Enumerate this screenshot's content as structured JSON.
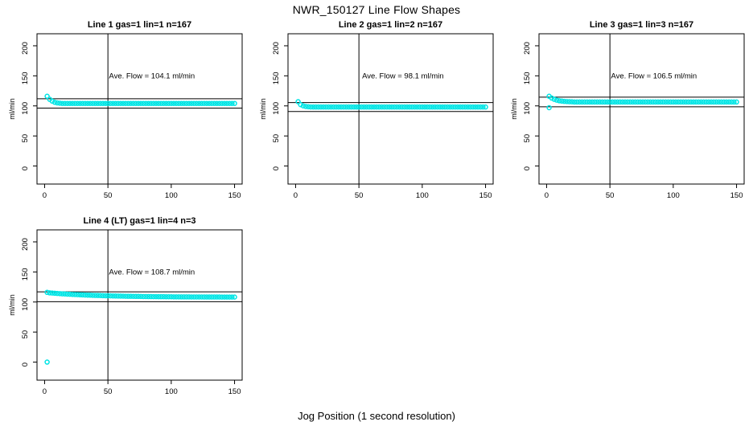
{
  "page": {
    "title": "NWR_150127  Line Flow Shapes",
    "xlabel": "Jog Position (1 second resolution)"
  },
  "colors": {
    "points": "#00E5E5",
    "lines": "#000000",
    "text": "#000000",
    "background": "#FFFFFF"
  },
  "chart_data": [
    {
      "type": "scatter",
      "title": "Line 1 gas=1 lin=1 n=167",
      "annotation": "Ave. Flow =  104.1  ml/min",
      "ave_flow_ml_min": 104.1,
      "ylabel": "ml/min",
      "xlim": [
        -6,
        156
      ],
      "ylim": [
        -30,
        220
      ],
      "xticks": [
        0,
        50,
        100,
        150
      ],
      "yticks": [
        0,
        50,
        100,
        150,
        200
      ],
      "vline_x": 50,
      "hlines_y": [
        111.9,
        96.3
      ],
      "x_start": 2,
      "x_step": 2,
      "y": [
        116,
        111,
        108,
        106,
        105,
        104.5,
        104.1,
        104.1,
        104.1,
        104.1,
        104.1,
        104.1,
        104.1,
        104.1,
        104.1,
        104.1,
        104.1,
        104.1,
        104.1,
        104.1,
        104.1,
        104.1,
        104.1,
        104.1,
        104.1,
        104.1,
        104.1,
        104.1,
        104.1,
        104.1,
        104.1,
        104.1,
        104.1,
        104.1,
        104.1,
        104.1,
        104.1,
        104.1,
        104.1,
        104.1,
        104.1,
        104.1,
        104.1,
        104.1,
        104.1,
        104.1,
        104.1,
        104.1,
        104.1,
        104.1,
        104.1,
        104.1,
        104.1,
        104.1,
        104.1,
        104.1,
        104.1,
        104.1,
        104.1,
        104.1,
        104.1,
        104.1,
        104.1,
        104.1,
        104.1,
        104.1,
        104.1,
        104.1,
        104.1,
        104.1,
        104.1,
        104.1,
        104.1,
        104.1,
        104.1
      ],
      "extra_points": []
    },
    {
      "type": "scatter",
      "title": "Line 2 gas=1 lin=2 n=167",
      "annotation": "Ave. Flow =  98.1  ml/min",
      "ave_flow_ml_min": 98.1,
      "ylabel": "ml/min",
      "xlim": [
        -6,
        156
      ],
      "ylim": [
        -30,
        220
      ],
      "xticks": [
        0,
        50,
        100,
        150
      ],
      "yticks": [
        0,
        50,
        100,
        150,
        200
      ],
      "vline_x": 50,
      "hlines_y": [
        105.5,
        90.7
      ],
      "x_start": 2,
      "x_step": 2,
      "y": [
        107,
        102,
        100,
        99,
        98.5,
        98.2,
        98.1,
        98.1,
        98.1,
        98.1,
        98.1,
        98.1,
        98.1,
        98.1,
        98.1,
        98.1,
        98.1,
        98.1,
        98.1,
        98.1,
        98.1,
        98.1,
        98.1,
        98.1,
        98.1,
        98.1,
        98.1,
        98.1,
        98.1,
        98.1,
        98.1,
        98.1,
        98.1,
        98.1,
        98.1,
        98.1,
        98.1,
        98.1,
        98.1,
        98.1,
        98.1,
        98.1,
        98.1,
        98.1,
        98.1,
        98.1,
        98.1,
        98.1,
        98.1,
        98.1,
        98.1,
        98.1,
        98.1,
        98.1,
        98.1,
        98.1,
        98.1,
        98.1,
        98.1,
        98.1,
        98.1,
        98.1,
        98.1,
        98.1,
        98.1,
        98.1,
        98.1,
        98.1,
        98.1,
        98.1,
        98.1,
        98.1,
        98.1,
        98.1,
        98.1
      ],
      "extra_points": []
    },
    {
      "type": "scatter",
      "title": "Line 3 gas=1 lin=3 n=167",
      "annotation": "Ave. Flow =  106.5  ml/min",
      "ave_flow_ml_min": 106.5,
      "ylabel": "ml/min",
      "xlim": [
        -6,
        156
      ],
      "ylim": [
        -30,
        220
      ],
      "xticks": [
        0,
        50,
        100,
        150
      ],
      "yticks": [
        0,
        50,
        100,
        150,
        200
      ],
      "vline_x": 50,
      "hlines_y": [
        114.5,
        98.5
      ],
      "x_start": 2,
      "x_step": 2,
      "y": [
        116,
        113,
        111,
        109.5,
        108.5,
        108,
        107.5,
        107.2,
        107,
        106.8,
        106.5,
        106.5,
        106.5,
        106.5,
        106.5,
        106.5,
        106.5,
        106.5,
        106.5,
        106.5,
        106.5,
        106.5,
        106.5,
        106.5,
        106.5,
        106.5,
        106.5,
        106.5,
        106.5,
        106.5,
        106.5,
        106.5,
        106.5,
        106.5,
        106.5,
        106.5,
        106.5,
        106.5,
        106.5,
        106.5,
        106.5,
        106.5,
        106.5,
        106.5,
        106.5,
        106.5,
        106.5,
        106.5,
        106.5,
        106.5,
        106.5,
        106.5,
        106.5,
        106.5,
        106.5,
        106.5,
        106.5,
        106.5,
        106.5,
        106.5,
        106.5,
        106.5,
        106.5,
        106.5,
        106.5,
        106.5,
        106.5,
        106.5,
        106.5,
        106.5,
        106.5,
        106.5,
        106.5,
        106.5,
        106.5
      ],
      "extra_points": [
        [
          2,
          97
        ]
      ]
    },
    {
      "type": "scatter",
      "title": "Line 4 (LT) gas=1 lin=4 n=3",
      "annotation": "Ave. Flow =  108.7  ml/min",
      "ave_flow_ml_min": 108.7,
      "ylabel": "ml/min",
      "xlim": [
        -6,
        156
      ],
      "ylim": [
        -30,
        220
      ],
      "xticks": [
        0,
        50,
        100,
        150
      ],
      "yticks": [
        0,
        50,
        100,
        150,
        200
      ],
      "vline_x": 50,
      "hlines_y": [
        116.9,
        100.5
      ],
      "x_start": 2,
      "x_step": 2,
      "y": [
        116,
        115.2,
        114.9,
        114.5,
        114.2,
        113.9,
        113.6,
        113.4,
        113.1,
        112.9,
        112.6,
        112.4,
        112.2,
        112.0,
        111.8,
        111.6,
        111.4,
        111.3,
        111.1,
        110.9,
        110.8,
        110.7,
        110.5,
        110.4,
        110.3,
        110.2,
        110.1,
        110.0,
        109.9,
        109.8,
        109.7,
        109.6,
        109.5,
        109.5,
        109.4,
        109.3,
        109.3,
        109.2,
        109.1,
        109.1,
        109.0,
        109.0,
        108.9,
        108.9,
        108.8,
        108.8,
        108.8,
        108.7,
        108.7,
        108.7,
        108.6,
        108.6,
        108.6,
        108.5,
        108.5,
        108.5,
        108.5,
        108.4,
        108.4,
        108.4,
        108.4,
        108.4,
        108.3,
        108.3,
        108.3,
        108.3,
        108.3,
        108.3,
        108.3,
        108.2,
        108.2,
        108.2,
        108.2,
        108.2,
        108.2
      ],
      "extra_points": [
        [
          2,
          0
        ]
      ]
    }
  ]
}
